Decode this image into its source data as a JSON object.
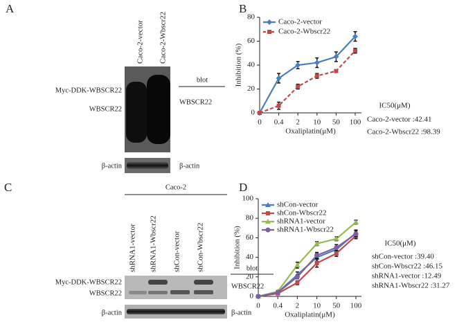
{
  "panels": {
    "A": {
      "label": "A",
      "columns": [
        "Caco-2-vector",
        "Caco-2-Wbscr22"
      ],
      "rows": [
        "Myc-DDK-WBSCR22",
        "WBSCR22",
        "β-actin"
      ],
      "blot_header": "blot",
      "blot_labels": [
        "WBSCR22",
        "β-actin"
      ]
    },
    "C": {
      "label": "C",
      "group": "Caco-2",
      "columns": [
        "shRNA1-vector",
        "shRNA1-Wbscr22",
        "shCon-vector",
        "shCon-Wbscr22"
      ],
      "rows": [
        "Myc-DDK-WBSCR22",
        "WBSCR22",
        "β-actin"
      ],
      "blot_header": "blot",
      "blot_labels": [
        "WBSCR22",
        "β-actin"
      ]
    }
  },
  "chart_data": [
    {
      "type": "line",
      "panel_label": "B",
      "x_label": "Oxaliplatin(μM)",
      "y_label": "Inhibition (%)",
      "categories": [
        "0",
        "0.4",
        "2",
        "10",
        "50",
        "100"
      ],
      "ylim": [
        0,
        80
      ],
      "yticks": [
        0,
        20,
        40,
        60,
        80
      ],
      "series": [
        {
          "name": "Caco-2-vector",
          "color": "#4a7ebb",
          "marker": "diamond",
          "line_style": "solid",
          "values": [
            0,
            29,
            40,
            42,
            47,
            64
          ],
          "errors": [
            0,
            4,
            3,
            4,
            4,
            4
          ]
        },
        {
          "name": "Caco-2-Wbscr22",
          "color": "#be4b48",
          "marker": "square",
          "line_style": "dashed",
          "values": [
            0,
            6,
            22,
            31,
            35,
            52
          ],
          "errors": [
            0,
            3,
            2,
            2,
            1,
            2
          ]
        }
      ],
      "annotations": [
        "IC50(μM)",
        "Caco-2-vector :42.41",
        "Caco-2-Wbscr22 :98.39"
      ]
    },
    {
      "type": "line",
      "panel_label": "D",
      "x_label": "Oxaliplatin(μM)",
      "y_label": "Inhibition (%)",
      "categories": [
        "0",
        "0.4",
        "2",
        "10",
        "50",
        "100"
      ],
      "ylim": [
        0,
        100
      ],
      "yticks": [
        0,
        20,
        40,
        60,
        80,
        100
      ],
      "series": [
        {
          "name": "shCon-vector",
          "color": "#4a7ebb",
          "marker": "triangle",
          "line_style": "solid",
          "values": [
            0,
            4,
            22,
            40,
            48,
            65
          ],
          "errors": [
            0,
            1,
            3,
            4,
            3,
            3
          ]
        },
        {
          "name": "shCon-Wbscr22",
          "color": "#be4b48",
          "marker": "square",
          "line_style": "solid",
          "values": [
            0,
            3,
            14,
            34,
            44,
            62
          ],
          "errors": [
            0,
            1,
            2,
            4,
            3,
            3
          ]
        },
        {
          "name": "shRNA1-vector",
          "color": "#98b954",
          "marker": "triangle",
          "line_style": "solid",
          "values": [
            0,
            5,
            32,
            54,
            59,
            76
          ],
          "errors": [
            0,
            1,
            3,
            2,
            2,
            2
          ]
        },
        {
          "name": "shRNA1-Wbscr22",
          "color": "#7d5fa0",
          "marker": "circle",
          "line_style": "solid",
          "values": [
            0,
            4,
            20,
            42,
            50,
            64
          ],
          "errors": [
            0,
            1,
            2,
            3,
            3,
            3
          ]
        }
      ],
      "annotations": [
        "IC50(μM)",
        "shCon-vector :39.40",
        "shCon-Wbscr22 :46.15",
        "shRNA1-vector :12.49",
        "shRNA1-Wbscr22 :31.27"
      ]
    }
  ]
}
